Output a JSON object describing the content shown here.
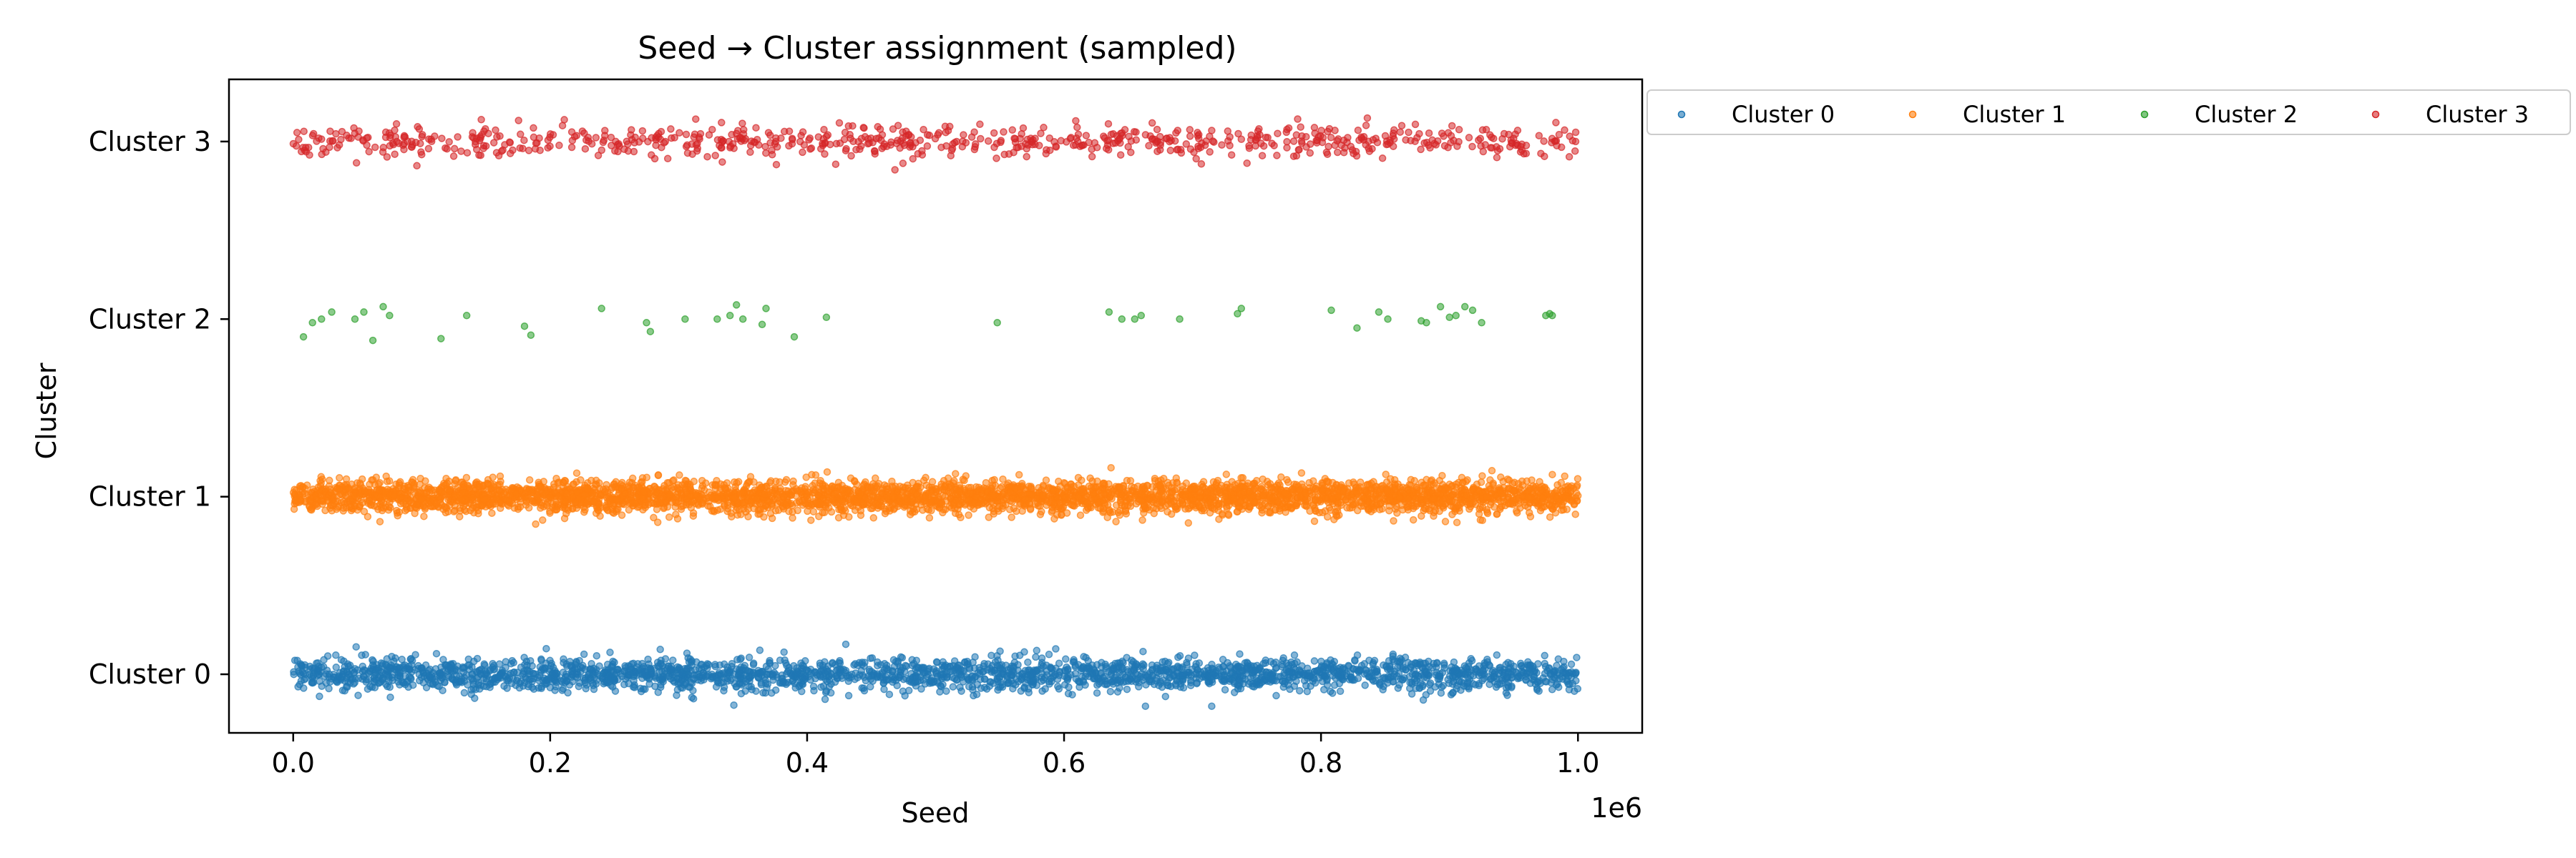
{
  "chart_data": {
    "type": "scatter",
    "title": "Seed → Cluster assignment (sampled)",
    "xlabel": "Seed",
    "ylabel": "Cluster",
    "x_offset_label": "1e6",
    "xlim": [
      -50000,
      1050000
    ],
    "ylim": [
      -0.33,
      3.35
    ],
    "x_ticks": [
      {
        "value": 0,
        "label": "0.0"
      },
      {
        "value": 200000,
        "label": "0.2"
      },
      {
        "value": 400000,
        "label": "0.4"
      },
      {
        "value": 600000,
        "label": "0.6"
      },
      {
        "value": 800000,
        "label": "0.8"
      },
      {
        "value": 1000000,
        "label": "1.0"
      }
    ],
    "y_ticks": [
      {
        "value": 0,
        "label": "Cluster 0"
      },
      {
        "value": 1,
        "label": "Cluster 1"
      },
      {
        "value": 2,
        "label": "Cluster 2"
      },
      {
        "value": 3,
        "label": "Cluster 3"
      }
    ],
    "grid": false,
    "legend_position": "outside-top-right",
    "jitter_sd": 0.045,
    "series": [
      {
        "name": "Cluster 0",
        "cluster": 0,
        "color": "#1f77b4",
        "count": 2500
      },
      {
        "name": "Cluster 1",
        "cluster": 1,
        "color": "#ff7f0e",
        "count": 4000
      },
      {
        "name": "Cluster 2",
        "cluster": 2,
        "color": "#2ca02c",
        "x": [
          8000,
          15000,
          22000,
          30000,
          48000,
          55000,
          62000,
          70000,
          75000,
          115000,
          135000,
          180000,
          185000,
          240000,
          275000,
          278000,
          305000,
          330000,
          340000,
          345000,
          350000,
          365000,
          368000,
          390000,
          415000,
          548000,
          635000,
          645000,
          655000,
          660000,
          690000,
          735000,
          738000,
          808000,
          828000,
          845000,
          852000,
          878000,
          882000,
          893000,
          900000,
          905000,
          912000,
          918000,
          925000,
          975000,
          978000,
          980000
        ],
        "y": [
          1.9,
          1.98,
          2.0,
          2.04,
          2.0,
          2.04,
          1.88,
          2.07,
          2.02,
          1.89,
          2.02,
          1.96,
          1.91,
          2.06,
          1.98,
          1.93,
          2.0,
          2.0,
          2.02,
          2.08,
          2.0,
          1.97,
          2.06,
          1.9,
          2.01,
          1.98,
          2.04,
          2.0,
          2.0,
          2.02,
          2.0,
          2.03,
          2.06,
          2.05,
          1.95,
          2.04,
          2.0,
          1.99,
          1.98,
          2.07,
          2.01,
          2.02,
          2.07,
          2.05,
          1.98,
          2.02,
          2.03,
          2.02
        ]
      },
      {
        "name": "Cluster 3",
        "cluster": 3,
        "color": "#d62728",
        "count": 750
      }
    ]
  }
}
